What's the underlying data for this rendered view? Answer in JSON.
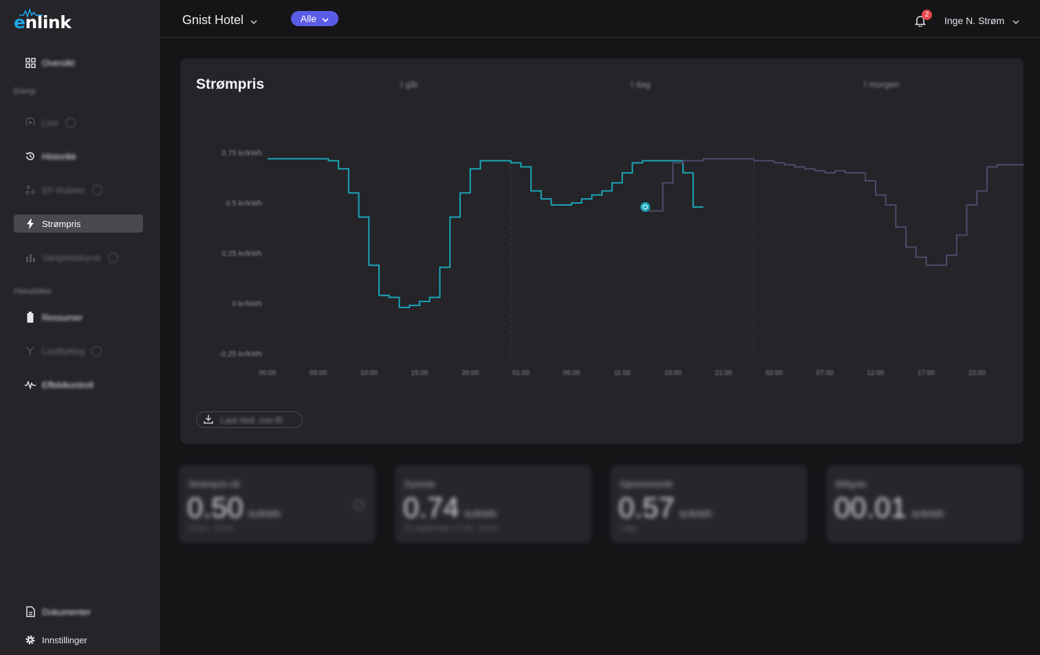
{
  "app": {
    "logo_text_e": "e",
    "logo_text_rest": "nlink",
    "brand_color": "#1fa6e8"
  },
  "sidebar": {
    "items": [
      {
        "label": "Oversikt",
        "icon": "grid-icon"
      },
      {
        "label": "Live",
        "icon": "broadcast-icon"
      },
      {
        "label": "Historikk",
        "icon": "history-icon"
      },
      {
        "label": "EF-Rutiner",
        "icon": "nodes-icon"
      },
      {
        "label": "Strømpris",
        "icon": "lightning-icon"
      },
      {
        "label": "Varighetskurve",
        "icon": "bar-chart-icon"
      },
      {
        "label": "Ressurser",
        "icon": "battery-icon"
      },
      {
        "label": "Lastflytting",
        "icon": "branch-icon"
      },
      {
        "label": "Effektkontroll",
        "icon": "pulse-icon"
      },
      {
        "label": "Dokumenter",
        "icon": "document-icon"
      },
      {
        "label": "Innstillinger",
        "icon": "gear-icon"
      }
    ],
    "sections": {
      "energi": "Energi",
      "fleksibilitet": "Fleksibilitet"
    }
  },
  "topbar": {
    "hotel": "Gnist Hotel",
    "filter": "Alle",
    "notification_count": "2",
    "user_name": "Inge N. Strøm"
  },
  "chart_card": {
    "title": "Strømpris",
    "day_labels": [
      "I går",
      "I dag",
      "I morgen"
    ],
    "download_label": "Last ned .csv-fil"
  },
  "chart_data": {
    "type": "line",
    "step": true,
    "ylabel_unit": "kr/kWh",
    "ylim": [
      -0.25,
      0.75
    ],
    "y_ticks": [
      "0.75 kr/kWh",
      "0.5 kr/kWh",
      "0.25 kr/kWh",
      "0 kr/kWh",
      "-0.25 kr/kWh"
    ],
    "y_tick_values": [
      0.75,
      0.5,
      0.25,
      0,
      -0.25
    ],
    "x_ticks": [
      "00:00",
      "05:00",
      "10:00",
      "15:00",
      "20:00",
      "01:00",
      "06:00",
      "11:00",
      "16:00",
      "21:00",
      "02:00",
      "07:00",
      "12:00",
      "17:00",
      "22:00"
    ],
    "x_start": 0,
    "x_end": 71,
    "day_boundaries": [
      24,
      48
    ],
    "current_hour": 37,
    "current_value": 0.48,
    "series": [
      {
        "color": "#1aa7b8",
        "x_start": 0,
        "values": [
          0.72,
          0.72,
          0.72,
          0.72,
          0.72,
          0.72,
          0.71,
          0.67,
          0.55,
          0.43,
          0.19,
          0.04,
          0.03,
          -0.02,
          -0.01,
          0.01,
          0.03,
          0.18,
          0.43,
          0.55,
          0.67,
          0.71,
          0.71,
          0.71,
          0.7,
          0.68,
          0.56,
          0.52,
          0.49,
          0.49,
          0.5,
          0.52,
          0.54,
          0.56,
          0.6,
          0.65,
          0.7,
          0.71,
          0.71,
          0.71,
          0.71,
          0.65,
          0.48
        ]
      },
      {
        "color": "#4e4b6b",
        "x_start": 37,
        "values": [
          0.46,
          0.46,
          0.6,
          0.7,
          0.71,
          0.71,
          0.72,
          0.72,
          0.72,
          0.72,
          0.72,
          0.71,
          0.71,
          0.7,
          0.69,
          0.68,
          0.67,
          0.66,
          0.65,
          0.66,
          0.65,
          0.65,
          0.61,
          0.54,
          0.49,
          0.38,
          0.28,
          0.23,
          0.19,
          0.19,
          0.24,
          0.34,
          0.49,
          0.56,
          0.68,
          0.69,
          0.69,
          0.69,
          0.68,
          0.63,
          0.61
        ]
      }
    ]
  },
  "stats": [
    {
      "title": "Strømpris nå",
      "value": "0.50",
      "unit": "kr/kWh",
      "sub": "13:00 - 14:00"
    },
    {
      "title": "Dyreste",
      "value": "0.74",
      "unit": "kr/kWh",
      "sub": "31 september 17:00 - 18:00"
    },
    {
      "title": "Gjennomsnitt",
      "value": "0.57",
      "unit": "kr/kWh",
      "sub": "I dag"
    },
    {
      "title": "Billigste",
      "value": "00.01",
      "unit": "kr/kWh",
      "sub": ""
    }
  ]
}
